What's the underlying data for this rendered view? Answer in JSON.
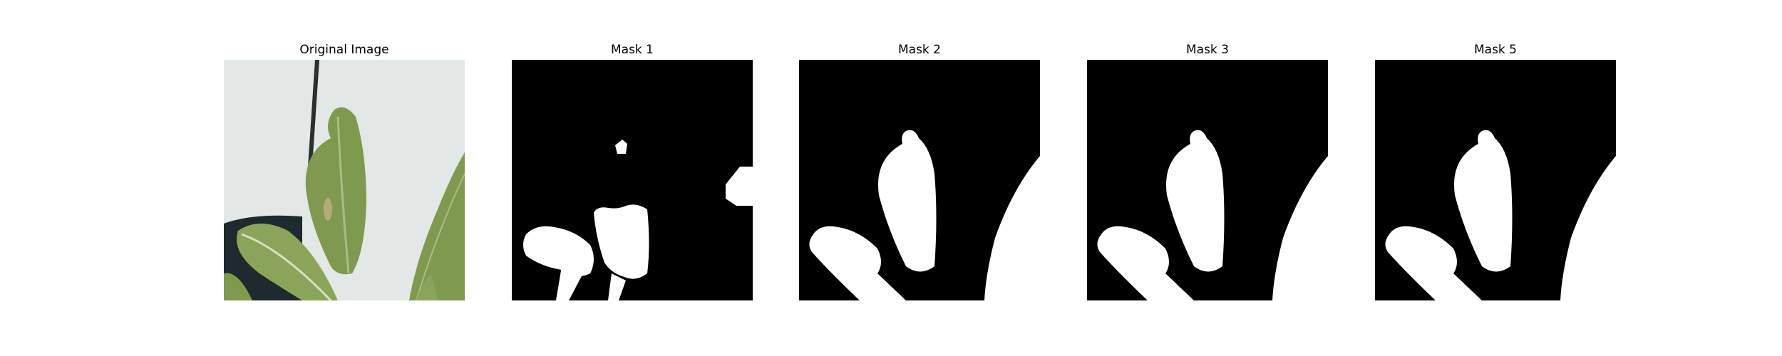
{
  "figure": {
    "background_color": "#ffffff",
    "panels": [
      {
        "title": "Original Image",
        "kind": "photo"
      },
      {
        "title": "Mask 1",
        "kind": "mask"
      },
      {
        "title": "Mask 2",
        "kind": "mask"
      },
      {
        "title": "Mask 3",
        "kind": "mask"
      },
      {
        "title": "Mask 5",
        "kind": "mask"
      }
    ]
  },
  "colors": {
    "mask_background": "#000000",
    "mask_foreground": "#ffffff",
    "wall": "#dfe5e2",
    "leaf": "#7f9a4f",
    "leaf_dark": "#5f7a38",
    "pot": "#1e2a2d"
  }
}
